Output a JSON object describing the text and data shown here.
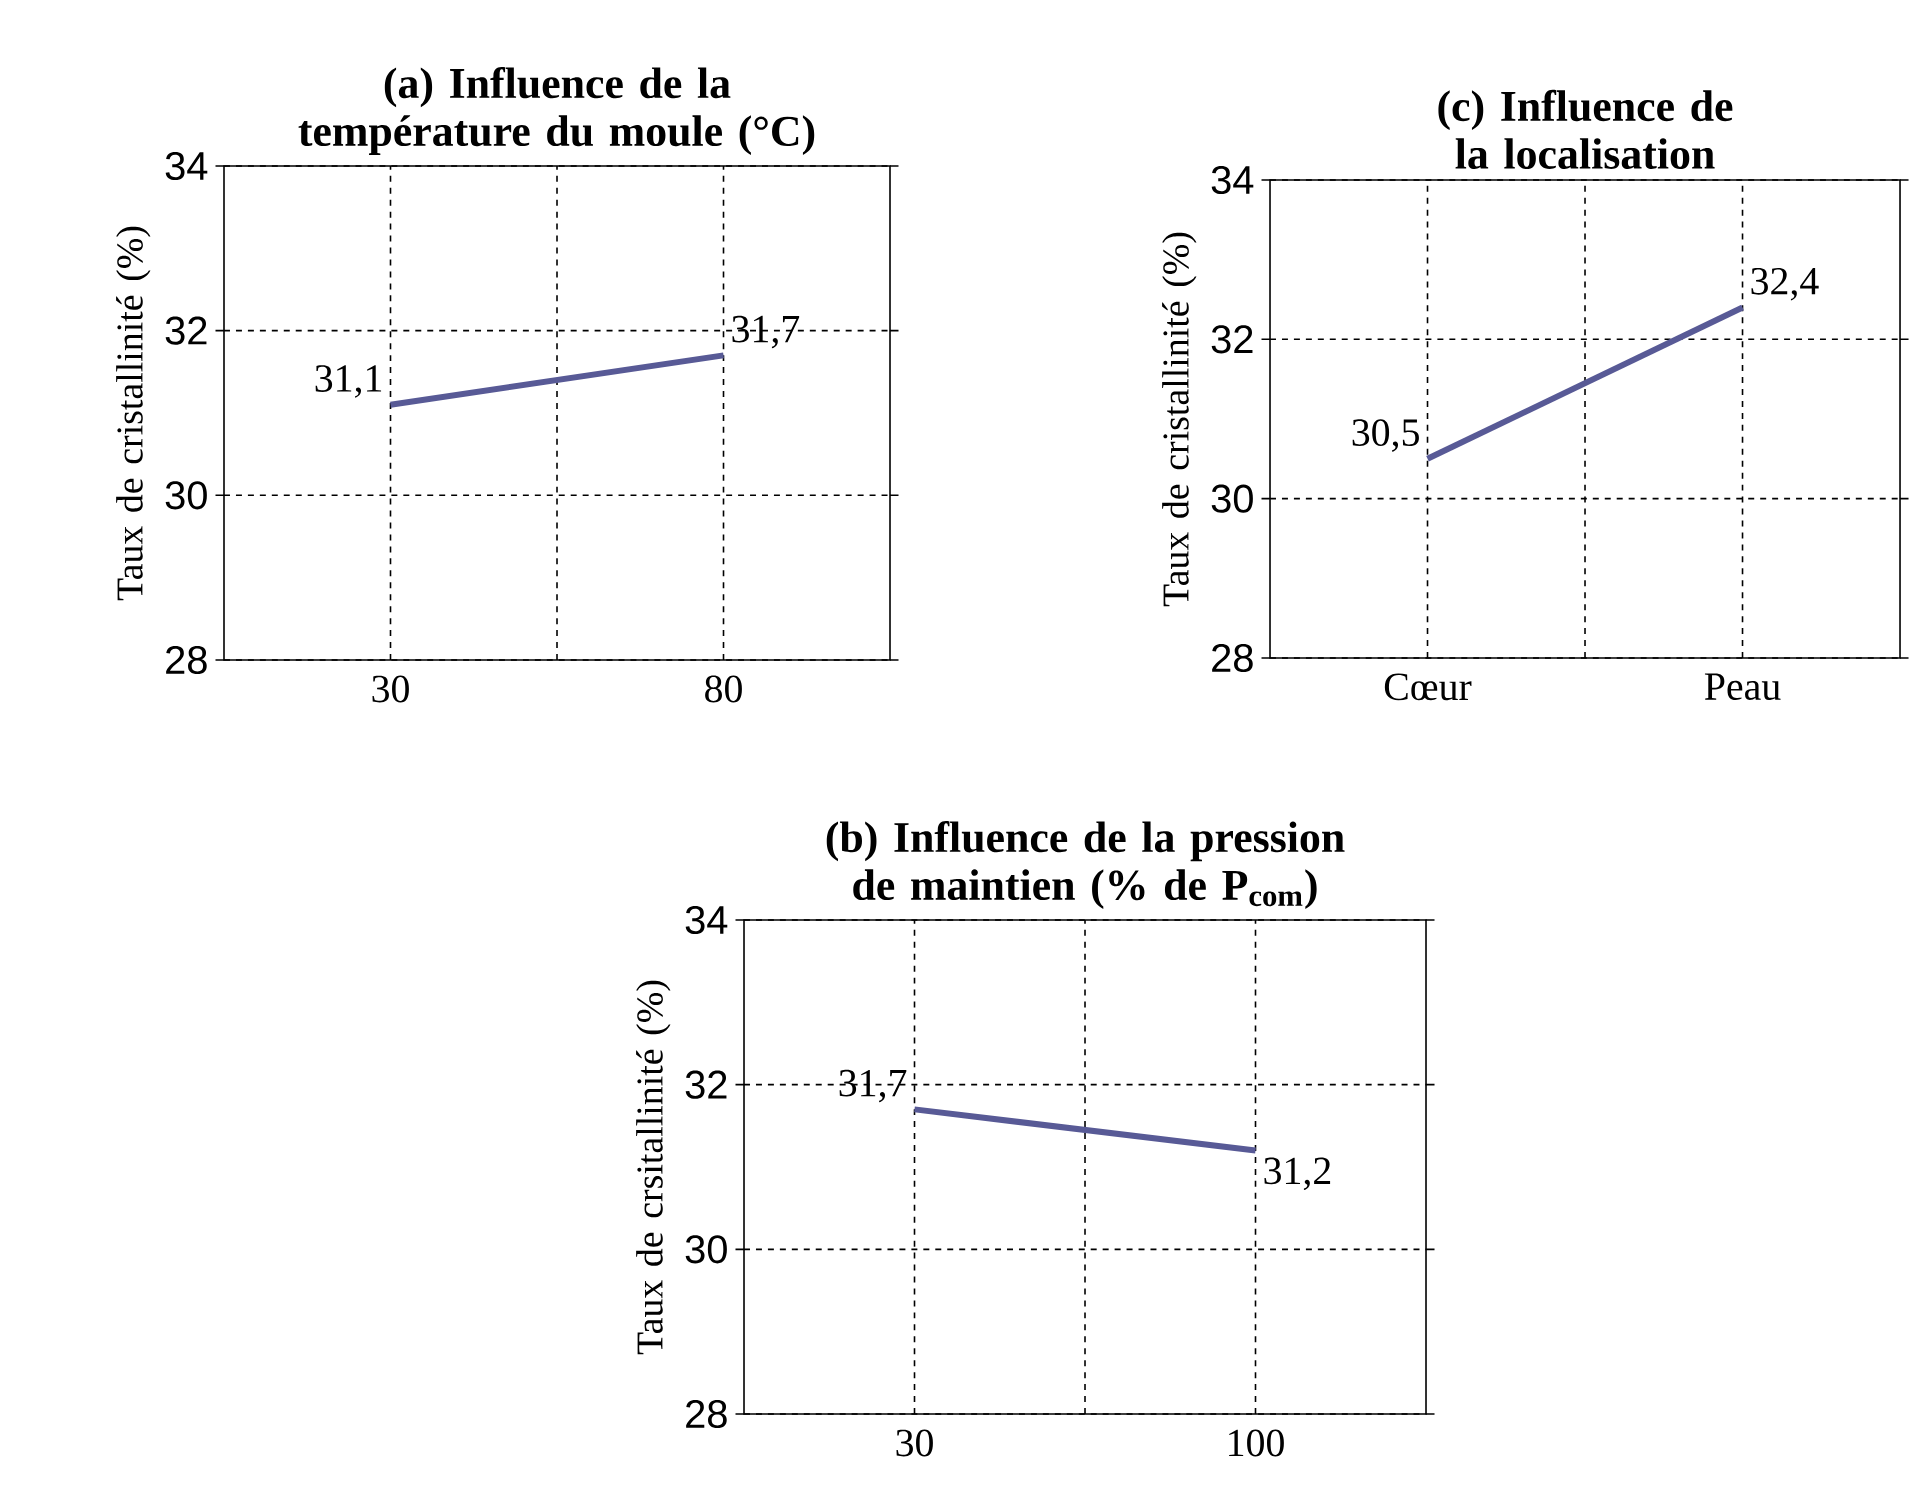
{
  "chart_data": [
    {
      "type": "line",
      "title": "(a) Influence de la température du moule (°C)",
      "ylabel": "Taux de cristallinité (%)",
      "categories": [
        "30",
        "80"
      ],
      "series": [
        {
          "color": "#585a96",
          "values": [
            31.1,
            31.7
          ],
          "value_labels": [
            "31,1",
            "31,7"
          ]
        }
      ],
      "ylim": [
        28,
        34
      ],
      "yticks": [
        28,
        30,
        32,
        34
      ],
      "grid": true,
      "marker": "none",
      "line_style": "solid"
    },
    {
      "type": "line",
      "title": "(c) Influence de la localisation",
      "ylabel": "Taux de cristallinité (%)",
      "categories": [
        "Cœur",
        "Peau"
      ],
      "series": [
        {
          "color": "#585a96",
          "values": [
            30.5,
            32.4
          ],
          "value_labels": [
            "30,5",
            "32,4"
          ]
        }
      ],
      "ylim": [
        28,
        34
      ],
      "yticks": [
        28,
        30,
        32,
        34
      ],
      "grid": true,
      "marker": "none",
      "line_style": "solid"
    },
    {
      "type": "line",
      "title": "(b) Influence de la pression de maintien (% de P$_{com}$)",
      "ylabel": "Taux de crsitallinité (%)",
      "categories": [
        "30",
        "100"
      ],
      "series": [
        {
          "color": "#585a96",
          "values": [
            31.7,
            31.2
          ],
          "value_labels": [
            "31,7",
            "31,2"
          ]
        }
      ],
      "ylim": [
        28,
        34
      ],
      "yticks": [
        28,
        30,
        32,
        34
      ],
      "grid": true,
      "marker": "none",
      "line_style": "solid"
    }
  ]
}
